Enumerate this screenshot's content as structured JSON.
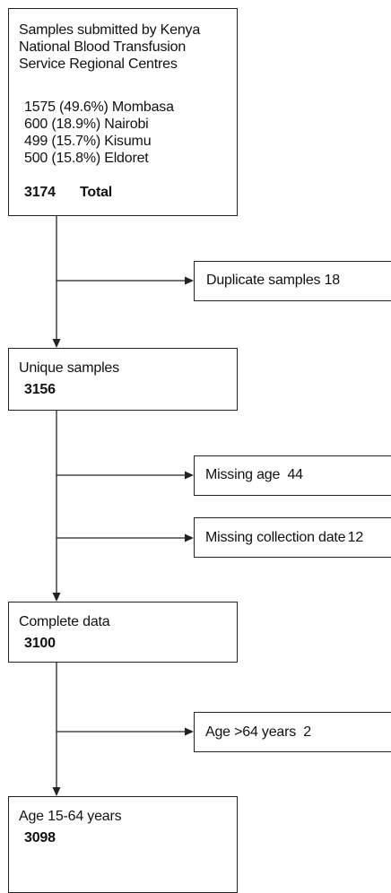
{
  "source_box": {
    "title_lines": [
      "Samples submitted by Kenya",
      "National Blood Transfusion",
      "Service Regional Centres"
    ],
    "centres": [
      {
        "count": "1575",
        "percent": "(49.6%)",
        "name": "Mombasa"
      },
      {
        "count": "600",
        "percent": "(18.9%)",
        "name": "Nairobi"
      },
      {
        "count": "499",
        "percent": "(15.7%)",
        "name": "Kisumu"
      },
      {
        "count": "500",
        "percent": "(15.8%)",
        "name": "Eldoret"
      }
    ],
    "total_value": "3174",
    "total_label": "Total"
  },
  "exclusions": {
    "duplicates": {
      "label": "Duplicate samples",
      "value": "18"
    },
    "missing_age": {
      "label": "Missing age",
      "value": "44"
    },
    "missing_date": {
      "label": "Missing collection date",
      "value": "12"
    },
    "over_age": {
      "label": "Age >64 years",
      "value": "2"
    }
  },
  "stages": {
    "unique": {
      "label": "Unique samples",
      "value": "3156"
    },
    "complete": {
      "label": "Complete data",
      "value": "3100"
    },
    "final": {
      "label": "Age 15-64 years",
      "value": "3098"
    }
  }
}
